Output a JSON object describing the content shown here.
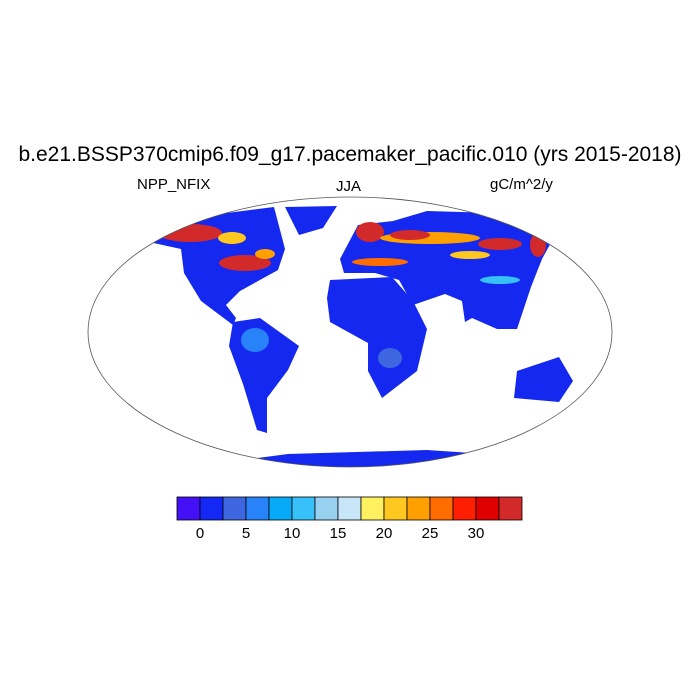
{
  "title": "b.e21.BSSP370cmip6.f09_g17.pacemaker_pacific.010 (yrs 2015-2018)",
  "left_label": "NPP_NFIX",
  "center_label": "JJA",
  "right_label": "gC/m^2/y",
  "projection": "Robinson",
  "colorbar": {
    "colors": [
      "#4410f5",
      "#1428f5",
      "#3e66e0",
      "#2882f8",
      "#08aaf8",
      "#38c0f8",
      "#98d0f0",
      "#c8e6f8",
      "#fff060",
      "#ffc820",
      "#ffa000",
      "#ff6c00",
      "#ff1e00",
      "#e00000",
      "#d22a2a"
    ],
    "tick_labels": [
      "0",
      "5",
      "10",
      "15",
      "20",
      "25",
      "30"
    ],
    "levels": [
      0,
      2.5,
      5,
      7.5,
      10,
      12.5,
      15,
      17.5,
      20,
      22.5,
      25,
      27.5,
      30,
      32.5
    ]
  }
}
